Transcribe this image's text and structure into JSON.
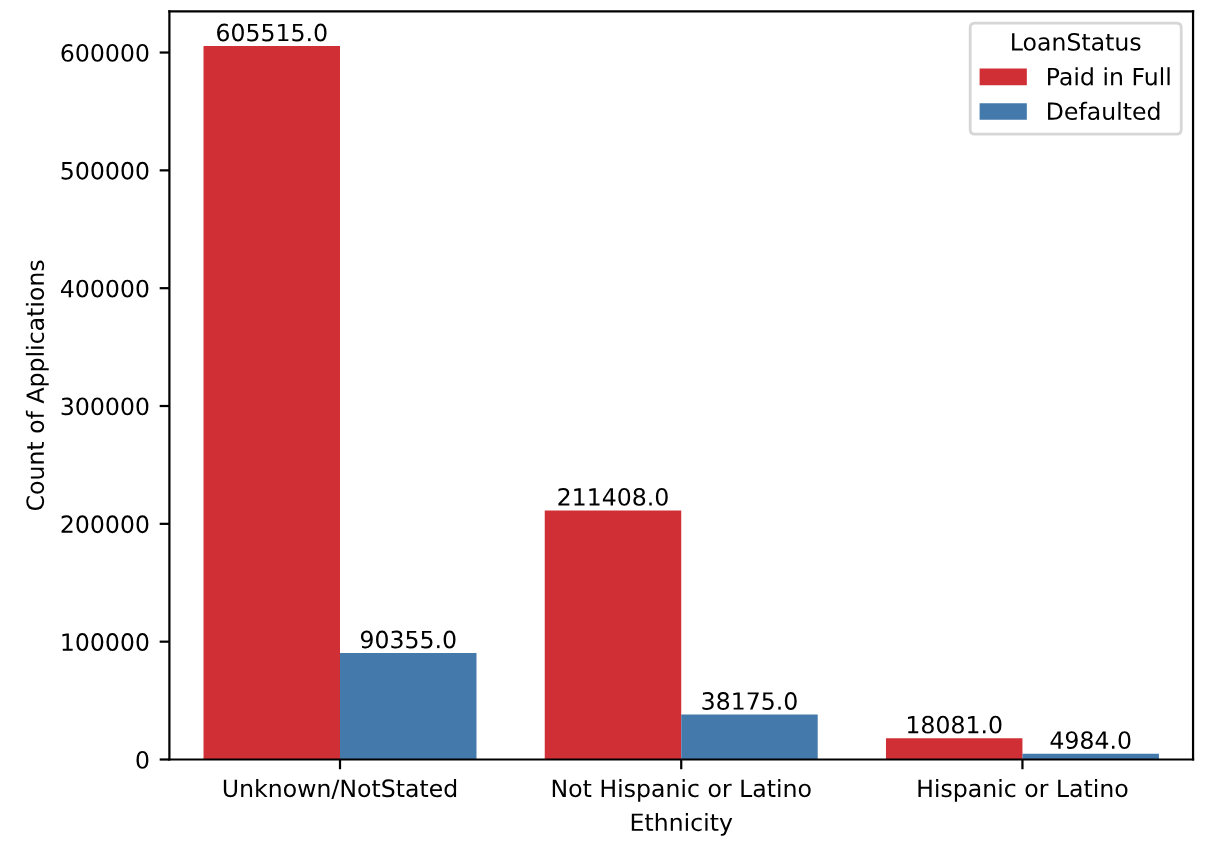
{
  "chart_data": {
    "type": "bar",
    "xlabel": "Ethnicity",
    "ylabel": "Count of Applications",
    "legend_title": "LoanStatus",
    "categories": [
      "Unknown/NotStated",
      "Not Hispanic or Latino",
      "Hispanic or Latino"
    ],
    "series": [
      {
        "name": "Paid in Full",
        "color": "#d03035",
        "values": [
          605515,
          211408,
          18081
        ],
        "value_labels": [
          "605515.0",
          "211408.0",
          "18081.0"
        ]
      },
      {
        "name": "Defaulted",
        "color": "#447aab",
        "values": [
          90355,
          38175,
          4984
        ],
        "value_labels": [
          "90355.0",
          "38175.0",
          "4984.0"
        ]
      }
    ],
    "ylim": [
      0,
      635000
    ],
    "yticks": [
      0,
      100000,
      200000,
      300000,
      400000,
      500000,
      600000
    ],
    "grid": false,
    "legend": "top right"
  }
}
